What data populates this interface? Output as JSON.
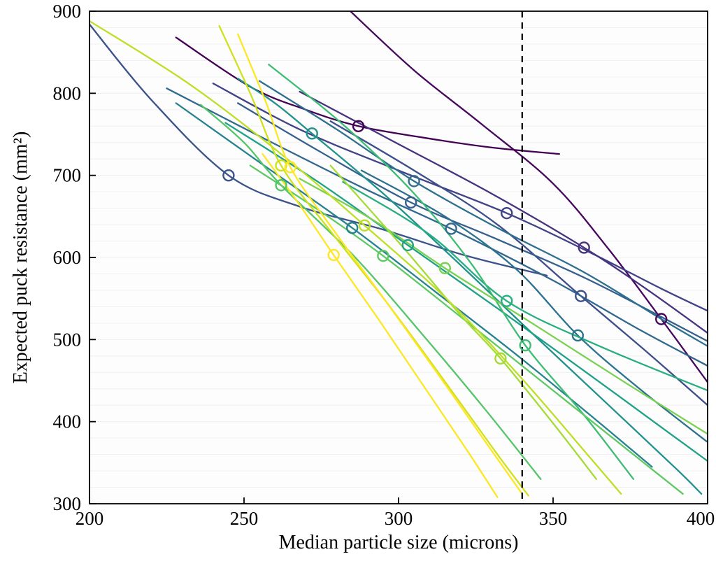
{
  "chart_data": {
    "type": "line",
    "title": "",
    "xlabel": "Median particle size (microns)",
    "ylabel": "Expected puck resistance (mm²)",
    "xlim": [
      200,
      400
    ],
    "ylim": [
      300,
      900
    ],
    "xticks": [
      200,
      250,
      300,
      350,
      400
    ],
    "yticks": [
      300,
      400,
      500,
      600,
      700,
      800,
      900
    ],
    "grid": {
      "horizontal_step": 20,
      "color": "#f1f1f1",
      "vertical": false
    },
    "vline": {
      "x": 340,
      "style": "dashed",
      "color": "#000000"
    },
    "marker_style": {
      "shape": "open-circle",
      "radius": 7.5
    },
    "series": [
      {
        "color": "#46085c",
        "marker": [
          385,
          525
        ],
        "points": [
          [
            283,
            905
          ],
          [
            305,
            828
          ],
          [
            327,
            762
          ],
          [
            350,
            690
          ],
          [
            368,
            610
          ],
          [
            385,
            525
          ],
          [
            400,
            448
          ]
        ]
      },
      {
        "color": "#440154",
        "marker": [
          287,
          760
        ],
        "points": [
          [
            228,
            868
          ],
          [
            252,
            808
          ],
          [
            270,
            780
          ],
          [
            287,
            760
          ],
          [
            308,
            746
          ],
          [
            330,
            734
          ],
          [
            352,
            726
          ]
        ]
      },
      {
        "color": "#414287",
        "marker": [
          335,
          654
        ],
        "points": [
          [
            240,
            812
          ],
          [
            268,
            756
          ],
          [
            300,
            706
          ],
          [
            335,
            654
          ],
          [
            362,
            606
          ],
          [
            385,
            562
          ],
          [
            400,
            535
          ]
        ]
      },
      {
        "color": "#46327e",
        "marker": [
          360,
          612
        ],
        "points": [
          [
            268,
            802
          ],
          [
            298,
            742
          ],
          [
            330,
            678
          ],
          [
            360,
            612
          ],
          [
            380,
            562
          ],
          [
            400,
            508
          ]
        ]
      },
      {
        "color": "#3d4e8a",
        "marker": [
          359,
          553
        ],
        "points": [
          [
            278,
            766
          ],
          [
            305,
            706
          ],
          [
            332,
            640
          ],
          [
            359,
            553
          ],
          [
            380,
            486
          ],
          [
            400,
            420
          ]
        ]
      },
      {
        "color": "#3b528b",
        "marker": [
          245,
          700
        ],
        "points": [
          [
            200,
            884
          ],
          [
            220,
            792
          ],
          [
            245,
            700
          ],
          [
            268,
            662
          ],
          [
            295,
            634
          ],
          [
            322,
            602
          ],
          [
            348,
            578
          ]
        ]
      },
      {
        "color": "#355f8d",
        "marker": [
          304,
          667
        ],
        "points": [
          [
            248,
            788
          ],
          [
            275,
            728
          ],
          [
            304,
            667
          ],
          [
            332,
            622
          ],
          [
            362,
            572
          ],
          [
            400,
            498
          ]
        ]
      },
      {
        "color": "#2e6f8e",
        "marker": [
          305,
          693
        ],
        "points": [
          [
            255,
            815
          ],
          [
            280,
            756
          ],
          [
            305,
            693
          ],
          [
            332,
            636
          ],
          [
            360,
            582
          ],
          [
            385,
            525
          ],
          [
            400,
            492
          ]
        ]
      },
      {
        "color": "#31688e",
        "marker": [
          317,
          635
        ],
        "points": [
          [
            225,
            806
          ],
          [
            258,
            742
          ],
          [
            290,
            682
          ],
          [
            317,
            635
          ],
          [
            350,
            572
          ],
          [
            378,
            512
          ],
          [
            400,
            468
          ]
        ]
      },
      {
        "color": "#2c718e",
        "marker": [
          358,
          505
        ],
        "points": [
          [
            288,
            706
          ],
          [
            315,
            650
          ],
          [
            338,
            586
          ],
          [
            358,
            505
          ],
          [
            378,
            440
          ],
          [
            400,
            375
          ]
        ]
      },
      {
        "color": "#21918c",
        "marker": [
          272,
          751
        ],
        "points": [
          [
            248,
            818
          ],
          [
            260,
            788
          ],
          [
            272,
            751
          ],
          [
            295,
            678
          ],
          [
            318,
            598
          ],
          [
            342,
            512
          ],
          [
            368,
            420
          ],
          [
            390,
            342
          ],
          [
            398,
            312
          ]
        ]
      },
      {
        "color": "#26828e",
        "marker": [
          285,
          636
        ],
        "points": [
          [
            228,
            788
          ],
          [
            255,
            716
          ],
          [
            285,
            636
          ],
          [
            312,
            558
          ],
          [
            338,
            482
          ],
          [
            362,
            408
          ],
          [
            382,
            345
          ]
        ]
      },
      {
        "color": "#1fa187",
        "marker": [
          303,
          615
        ],
        "points": [
          [
            244,
            764
          ],
          [
            274,
            692
          ],
          [
            303,
            615
          ],
          [
            332,
            538
          ],
          [
            360,
            462
          ],
          [
            388,
            385
          ],
          [
            400,
            352
          ]
        ]
      },
      {
        "color": "#28ae80",
        "marker": [
          335,
          547
        ],
        "points": [
          [
            282,
            692
          ],
          [
            310,
            628
          ],
          [
            335,
            547
          ],
          [
            365,
            492
          ],
          [
            400,
            438
          ]
        ]
      },
      {
        "color": "#3dbc74",
        "marker": [
          341,
          493
        ],
        "points": [
          [
            258,
            835
          ],
          [
            282,
            762
          ],
          [
            305,
            678
          ],
          [
            324,
            590
          ],
          [
            341,
            493
          ],
          [
            360,
            408
          ],
          [
            376,
            330
          ]
        ]
      },
      {
        "color": "#54c568",
        "marker": [
          262,
          688
        ],
        "points": [
          [
            236,
            786
          ],
          [
            250,
            740
          ],
          [
            262,
            688
          ],
          [
            286,
            600
          ],
          [
            308,
            505
          ],
          [
            328,
            415
          ],
          [
            346,
            330
          ]
        ]
      },
      {
        "color": "#5ec962",
        "marker": [
          295,
          602
        ],
        "points": [
          [
            252,
            712
          ],
          [
            274,
            658
          ],
          [
            295,
            602
          ],
          [
            320,
            528
          ],
          [
            346,
            450
          ],
          [
            372,
            372
          ],
          [
            392,
            312
          ]
        ]
      },
      {
        "color": "#7ad151",
        "marker": [
          315,
          587
        ],
        "points": [
          [
            268,
            696
          ],
          [
            292,
            645
          ],
          [
            315,
            587
          ],
          [
            344,
            518
          ],
          [
            374,
            446
          ],
          [
            400,
            385
          ]
        ]
      },
      {
        "color": "#a5db36",
        "marker": [
          333,
          477
        ],
        "points": [
          [
            278,
            712
          ],
          [
            302,
            610
          ],
          [
            320,
            530
          ],
          [
            333,
            477
          ],
          [
            350,
            398
          ],
          [
            364,
            330
          ]
        ]
      },
      {
        "color": "#bddf26",
        "marker": [
          289,
          639
        ],
        "points": [
          [
            200,
            888
          ],
          [
            232,
            812
          ],
          [
            262,
            726
          ],
          [
            289,
            639
          ],
          [
            316,
            548
          ],
          [
            340,
            452
          ],
          [
            362,
            356
          ],
          [
            372,
            312
          ]
        ]
      },
      {
        "color": "#d0e11c",
        "marker": [
          262,
          712
        ],
        "points": [
          [
            242,
            882
          ],
          [
            252,
            800
          ],
          [
            262,
            712
          ],
          [
            278,
            632
          ],
          [
            296,
            546
          ],
          [
            314,
            454
          ],
          [
            332,
            360
          ],
          [
            342,
            310
          ]
        ]
      },
      {
        "color": "#fde725",
        "marker": [
          265,
          710
        ],
        "points": [
          [
            248,
            872
          ],
          [
            257,
            790
          ],
          [
            265,
            710
          ],
          [
            280,
            628
          ],
          [
            296,
            546
          ],
          [
            312,
            462
          ],
          [
            328,
            376
          ],
          [
            340,
            312
          ]
        ]
      },
      {
        "color": "#fde725",
        "marker": [
          279,
          603
        ],
        "points": [
          [
            256,
            726
          ],
          [
            268,
            664
          ],
          [
            279,
            603
          ],
          [
            294,
            522
          ],
          [
            308,
            444
          ],
          [
            322,
            366
          ],
          [
            332,
            308
          ]
        ]
      }
    ]
  }
}
